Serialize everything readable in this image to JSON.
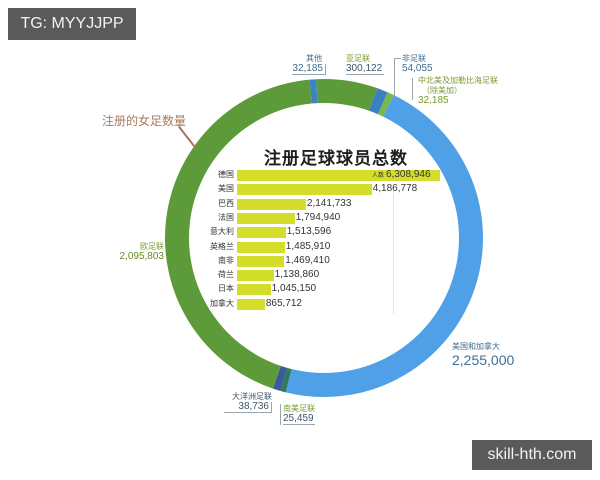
{
  "watermarks": {
    "top_left": "TG: MYYJJPP",
    "bottom_right": "skill-hth.com"
  },
  "annotation": {
    "women_label": "注册的女足数量"
  },
  "center_title": "注册足球球员总数",
  "bar_unit_label": "人数",
  "colors": {
    "europe": "#5d9a3a",
    "other": "#3d82c4",
    "asia": "#5d9a3a",
    "africa": "#3a7fc0",
    "concacaf": "#78b84a",
    "usa_canada": "#4fa0e6",
    "south_america": "#2f7a5a",
    "oceania": "#3a5a9a",
    "bar": "#d4de2a"
  },
  "ring_labels": {
    "other": {
      "name": "其他",
      "value": "32,185"
    },
    "asia": {
      "name": "亚足联",
      "value": "300,122"
    },
    "africa": {
      "name": "非足联",
      "value": "54,055"
    },
    "concacaf": {
      "name_line1": "中北美及加勒比海足联",
      "name_line2": "（除美加）",
      "value": "32,185"
    },
    "usa_canada": {
      "name": "美国和加拿大",
      "value": "2,255,000"
    },
    "south_america": {
      "name": "南美足联",
      "value": "25,459"
    },
    "oceania": {
      "name": "大洋洲足联",
      "value": "38,736"
    },
    "europe": {
      "name": "欧足联",
      "value": "2,095,803"
    }
  },
  "bars": [
    {
      "country": "德国",
      "value": "6,308,946"
    },
    {
      "country": "美国",
      "value": "4,186,778"
    },
    {
      "country": "巴西",
      "value": "2,141,733"
    },
    {
      "country": "法国",
      "value": "1,794,940"
    },
    {
      "country": "意大利",
      "value": "1,513,596"
    },
    {
      "country": "英格兰",
      "value": "1,485,910"
    },
    {
      "country": "南非",
      "value": "1,469,410"
    },
    {
      "country": "荷兰",
      "value": "1,138,860"
    },
    {
      "country": "日本",
      "value": "1,045,150"
    },
    {
      "country": "加拿大",
      "value": "865,712"
    }
  ],
  "chart_data": [
    {
      "type": "pie",
      "subtype": "donut",
      "title": "注册的女足数量",
      "categories": [
        "其他",
        "亚足联",
        "非足联",
        "中北美及加勒比海足联（除美加）",
        "美国和加拿大",
        "南美足联",
        "大洋洲足联",
        "欧足联"
      ],
      "values": [
        32185,
        300122,
        54055,
        32185,
        2255000,
        25459,
        38736,
        2095803
      ],
      "legend_position": "labels around ring"
    },
    {
      "type": "bar",
      "orientation": "horizontal",
      "title": "注册足球球员总数",
      "xlabel": "人数",
      "categories": [
        "德国",
        "美国",
        "巴西",
        "法国",
        "意大利",
        "英格兰",
        "南非",
        "荷兰",
        "日本",
        "加拿大"
      ],
      "values": [
        6308946,
        4186778,
        2141733,
        1794940,
        1513596,
        1485910,
        1469410,
        1138860,
        1045150,
        865712
      ],
      "grid": false
    }
  ]
}
